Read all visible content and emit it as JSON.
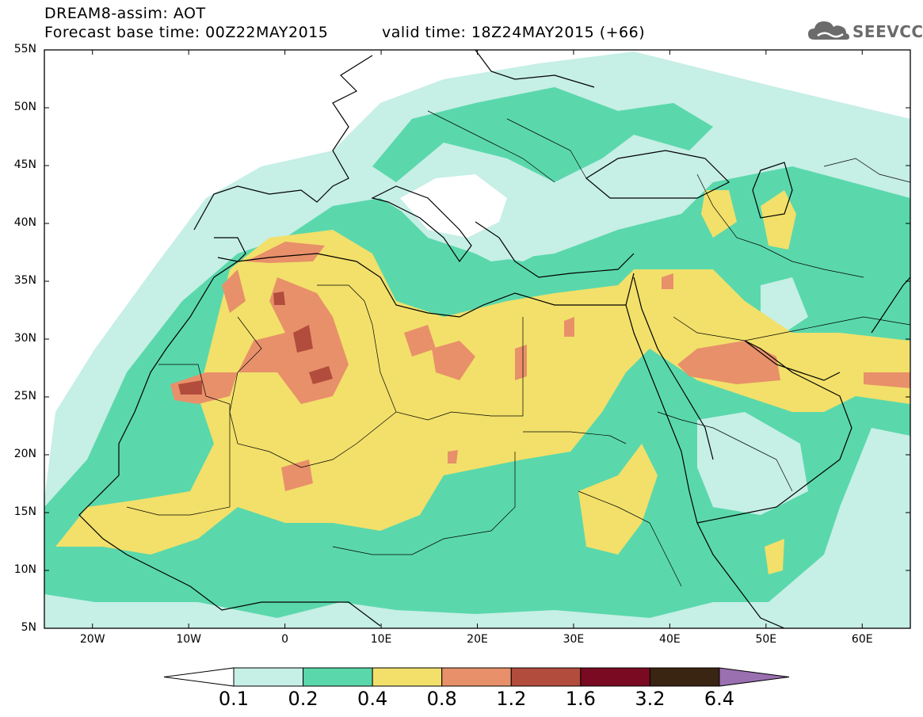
{
  "header": {
    "line1": "DREAM8-assim: AOT",
    "line2": "Forecast base time: 00Z22MAY2015",
    "valid": "valid time: 18Z24MAY2015 (+66)"
  },
  "logo": {
    "text": "SEEVCCC",
    "icon": "cloud-logo-icon"
  },
  "map": {
    "lat_labels": [
      "55N",
      "50N",
      "45N",
      "40N",
      "35N",
      "30N",
      "25N",
      "20N",
      "15N",
      "10N",
      "5N"
    ],
    "lon_labels": [
      "20W",
      "10W",
      "0",
      "10E",
      "20E",
      "30E",
      "40E",
      "50E",
      "60E"
    ],
    "lon_range": [
      -25,
      65
    ],
    "lat_range": [
      5,
      55
    ]
  },
  "colorbar": {
    "labels": [
      "0.1",
      "0.2",
      "0.4",
      "0.8",
      "1.2",
      "1.6",
      "3.2",
      "6.4"
    ],
    "colors": [
      "#ffffff",
      "#c6efe6",
      "#5ad8ab",
      "#f2e06a",
      "#e8906a",
      "#b24c3c",
      "#7a0a22",
      "#3a2412",
      "#9a70b0"
    ]
  }
}
